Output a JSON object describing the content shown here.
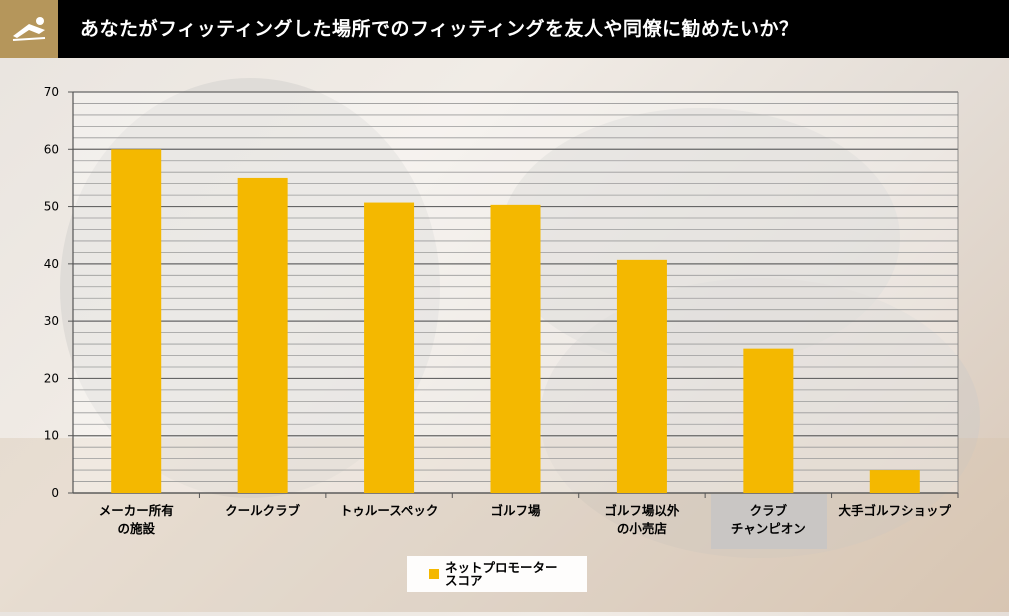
{
  "header": {
    "title": "あなたがフィッティングした場所でのフィッティングを友人や同僚に勧めたいか？",
    "brand_color": "#b5965b"
  },
  "legend": {
    "label": "ネットプロモーター\nスコア"
  },
  "colors": {
    "bar": "#f4b800",
    "header_bg": "#000000",
    "grid": "#8a8a8a"
  },
  "chart_data": {
    "type": "bar",
    "categories": [
      "メーカー所有\nの施設",
      "クールクラブ",
      "トゥルースペック",
      "ゴルフ場",
      "ゴルフ場以外\nの小売店",
      "クラブ\nチャンピオン",
      "大手ゴルフショップ"
    ],
    "series": [
      {
        "name": "ネットプロモータースコア",
        "values": [
          60,
          55,
          50.7,
          50.3,
          40.7,
          25.2,
          4
        ]
      }
    ],
    "ylim": [
      0,
      70
    ],
    "yticks": [
      0,
      10,
      20,
      30,
      40,
      50,
      60,
      70
    ],
    "minor_grid_step": 2,
    "grid": true,
    "legend_position": "bottom",
    "title": "",
    "xlabel": "",
    "ylabel": ""
  }
}
